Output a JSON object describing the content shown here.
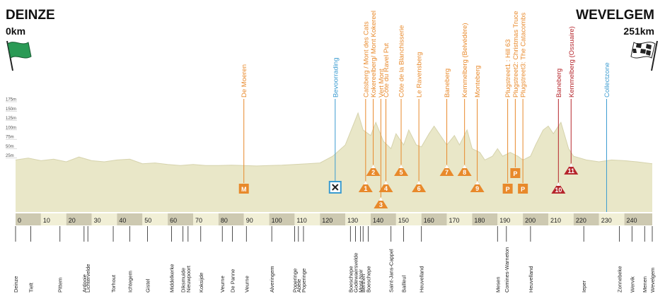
{
  "chart_data": {
    "type": "area",
    "start": {
      "name": "DEINZE",
      "distance": "0km"
    },
    "finish": {
      "name": "WEVELGEM",
      "distance": "251km"
    },
    "x": [
      0,
      5,
      10,
      15,
      20,
      25,
      30,
      35,
      40,
      45,
      50,
      55,
      60,
      65,
      70,
      75,
      80,
      85,
      90,
      95,
      100,
      105,
      110,
      115,
      120,
      125,
      130,
      135,
      137,
      140,
      142,
      145,
      148,
      150,
      153,
      155,
      158,
      160,
      163,
      165,
      168,
      170,
      173,
      175,
      178,
      180,
      183,
      185,
      188,
      190,
      192,
      195,
      198,
      200,
      203,
      205,
      208,
      210,
      212,
      215,
      218,
      220,
      225,
      230,
      235,
      240,
      245,
      251
    ],
    "values": [
      20,
      25,
      18,
      22,
      15,
      28,
      18,
      15,
      20,
      22,
      10,
      12,
      8,
      5,
      8,
      5,
      5,
      6,
      5,
      4,
      5,
      6,
      8,
      10,
      12,
      30,
      60,
      145,
      100,
      85,
      120,
      70,
      50,
      90,
      60,
      100,
      60,
      55,
      90,
      110,
      80,
      60,
      85,
      60,
      100,
      50,
      40,
      20,
      30,
      50,
      30,
      40,
      30,
      20,
      30,
      60,
      100,
      110,
      90,
      120,
      50,
      30,
      20,
      15,
      20,
      18,
      15,
      10
    ],
    "xlim": [
      0,
      251
    ],
    "xticks": [
      0,
      10,
      20,
      30,
      40,
      50,
      60,
      70,
      80,
      90,
      100,
      110,
      120,
      130,
      140,
      150,
      160,
      170,
      180,
      190,
      200,
      210,
      220,
      230,
      240
    ],
    "ylim": [
      0,
      175
    ],
    "yticks": [
      {
        "value": 25,
        "label": "25m"
      },
      {
        "value": 50,
        "label": "50m"
      },
      {
        "value": 75,
        "label": "75m"
      },
      {
        "value": 100,
        "label": "100m"
      },
      {
        "value": 125,
        "label": "125m"
      },
      {
        "value": 150,
        "label": "150m"
      },
      {
        "value": 175,
        "label": "175m"
      }
    ],
    "color": "#e9e7c8",
    "climbs": [
      {
        "name": "De Moeren",
        "km": 90,
        "marker": "M",
        "color": "#e8892b"
      },
      {
        "name": "Bevoorrading",
        "km": 126,
        "color": "#3a9bd0"
      },
      {
        "name": "Catsberg / Mont des Cats",
        "km": 138,
        "marker": "1",
        "color": "#e8892b"
      },
      {
        "name": "Kokereelberg/ Mont Kokereel",
        "km": 141,
        "marker": "2",
        "color": "#e8892b"
      },
      {
        "name": "Vert Mont",
        "km": 144,
        "marker": "3",
        "color": "#e8892b"
      },
      {
        "name": "Côte du Ravel Put",
        "km": 146,
        "marker": "4",
        "color": "#e8892b"
      },
      {
        "name": "Côte de la Blanchisserie",
        "km": 152,
        "marker": "5",
        "color": "#e8892b"
      },
      {
        "name": "Le Ravensberg",
        "km": 159,
        "marker": "6",
        "color": "#e8892b"
      },
      {
        "name": "Baneberg",
        "km": 170,
        "marker": "7",
        "color": "#e8892b"
      },
      {
        "name": "Kemmelberg (Belvédère)",
        "km": 177,
        "marker": "8",
        "color": "#e8892b"
      },
      {
        "name": "Monteberg",
        "km": 182,
        "marker": "9",
        "color": "#e8892b"
      },
      {
        "name": "Plugstreet1 : Hill 63",
        "km": 194,
        "marker": "P",
        "color": "#e8892b"
      },
      {
        "name": "Plugstreet2: Christmas Truce",
        "km": 197,
        "marker": "P",
        "color": "#e8892b"
      },
      {
        "name": "Plugstreet3: The Catacombs",
        "km": 200,
        "marker": "P",
        "color": "#e8892b"
      },
      {
        "name": "Baneberg",
        "km": 214,
        "marker": "10",
        "color": "#b5252b"
      },
      {
        "name": "Kemmelberg (Ossuaire)",
        "km": 219,
        "marker": "11",
        "color": "#b5252b"
      },
      {
        "name": "Collectzone",
        "km": 233,
        "color": "#3a9bd0"
      }
    ],
    "towns": [
      {
        "name": "Deinze",
        "km": 0
      },
      {
        "name": "Tielt",
        "km": 6
      },
      {
        "name": "Pittem",
        "km": 17.5
      },
      {
        "name": "Ardooie",
        "km": 27
      },
      {
        "name": "Lichtervelde",
        "km": 28.5
      },
      {
        "name": "Torhout",
        "km": 38.5
      },
      {
        "name": "Ichtegem",
        "km": 45
      },
      {
        "name": "Gistel",
        "km": 52
      },
      {
        "name": "Middelkerke",
        "km": 61.5
      },
      {
        "name": "Diksmuide",
        "km": 66
      },
      {
        "name": "Nieuwpoort",
        "km": 68
      },
      {
        "name": "Koksijde",
        "km": 73
      },
      {
        "name": "Veurne",
        "km": 81.5
      },
      {
        "name": "De Panne",
        "km": 85.5
      },
      {
        "name": "Veurne",
        "km": 91
      },
      {
        "name": "Alveringem",
        "km": 101
      },
      {
        "name": "Poperinge",
        "km": 110
      },
      {
        "name": "Abele",
        "km": 111.5
      },
      {
        "name": "Poperinge",
        "km": 113.5
      },
      {
        "name": "Boeschepe",
        "km": 132
      },
      {
        "name": "Godewaersvelde",
        "km": 134
      },
      {
        "name": "Mont-Noir",
        "km": 136
      },
      {
        "name": "Berthen",
        "km": 137
      },
      {
        "name": "Boeschepe",
        "km": 139
      },
      {
        "name": "Saint-Jans-Cappel",
        "km": 148
      },
      {
        "name": "Bailleul",
        "km": 153
      },
      {
        "name": "Heuvelland",
        "km": 160
      },
      {
        "name": "Mesen",
        "km": 190
      },
      {
        "name": "Comines-Warneton",
        "km": 193.5
      },
      {
        "name": "Heuvelland",
        "km": 203
      },
      {
        "name": "Ieper",
        "km": 224
      },
      {
        "name": "Zonnebeke",
        "km": 238
      },
      {
        "name": "Wervik",
        "km": 243
      },
      {
        "name": "Menen",
        "km": 248
      },
      {
        "name": "Wevelgem",
        "km": 251
      }
    ]
  }
}
